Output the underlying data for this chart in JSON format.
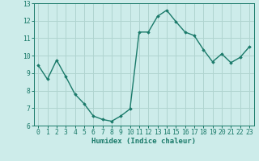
{
  "x": [
    0,
    1,
    2,
    3,
    4,
    5,
    6,
    7,
    8,
    9,
    10,
    11,
    12,
    13,
    14,
    15,
    16,
    17,
    18,
    19,
    20,
    21,
    22,
    23
  ],
  "y": [
    9.45,
    8.65,
    9.75,
    8.8,
    7.8,
    7.25,
    6.55,
    6.35,
    6.25,
    6.55,
    6.95,
    11.35,
    11.35,
    12.25,
    12.6,
    11.95,
    11.35,
    11.15,
    10.35,
    9.65,
    10.1,
    9.6,
    9.9,
    10.5
  ],
  "line_color": "#1a7a6a",
  "marker": "D",
  "marker_size": 1.8,
  "bg_color": "#cdecea",
  "grid_color": "#b0d4d0",
  "xlabel": "Humidex (Indice chaleur)",
  "xlim": [
    -0.5,
    23.5
  ],
  "ylim": [
    6,
    13
  ],
  "yticks": [
    6,
    7,
    8,
    9,
    10,
    11,
    12,
    13
  ],
  "xticks": [
    0,
    1,
    2,
    3,
    4,
    5,
    6,
    7,
    8,
    9,
    10,
    11,
    12,
    13,
    14,
    15,
    16,
    17,
    18,
    19,
    20,
    21,
    22,
    23
  ],
  "xlabel_fontsize": 6.5,
  "tick_fontsize": 5.8,
  "line_width": 1.0
}
